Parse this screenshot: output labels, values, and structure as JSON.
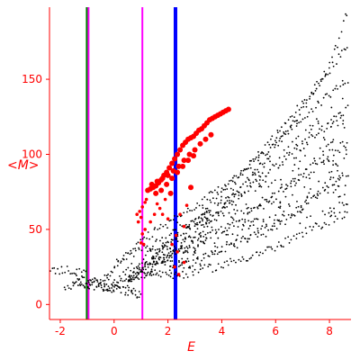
{
  "chart_data": {
    "type": "scatter",
    "title": "",
    "xlabel": "E",
    "ylabel": "<M>",
    "xlim": [
      -2.4,
      8.8
    ],
    "ylim": [
      -10,
      198
    ],
    "x_ticks": [
      -2,
      0,
      2,
      4,
      6,
      8
    ],
    "y_ticks": [
      0,
      50,
      100,
      150
    ],
    "grid": false,
    "axis_color": "#ff0000",
    "vertical_lines": [
      {
        "x": -1.0,
        "color": "#008000"
      },
      {
        "x": -0.95,
        "color": "#ff00ff"
      },
      {
        "x": 1.05,
        "color": "#ff00ff"
      },
      {
        "x": 2.28,
        "color": "#0000ff"
      }
    ],
    "series": [
      {
        "color": "#000000",
        "bands": [
          {
            "points": [
              [
                -1.6,
                15
              ],
              [
                -1.0,
                13
              ],
              [
                -0.5,
                11
              ],
              [
                0.0,
                12
              ],
              [
                0.5,
                15
              ],
              [
                1.0,
                20
              ],
              [
                2.0,
                32
              ],
              [
                3.0,
                46
              ],
              [
                4.0,
                62
              ],
              [
                5.0,
                82
              ],
              [
                6.0,
                106
              ],
              [
                7.0,
                130
              ],
              [
                8.0,
                158
              ],
              [
                8.7,
                196
              ]
            ]
          },
          {
            "points": [
              [
                -1.4,
                17
              ],
              [
                -0.5,
                14
              ],
              [
                0.0,
                16
              ],
              [
                0.5,
                22
              ],
              [
                1.0,
                30
              ],
              [
                2.0,
                44
              ],
              [
                3.0,
                58
              ],
              [
                4.0,
                74
              ],
              [
                5.0,
                92
              ],
              [
                6.0,
                112
              ],
              [
                7.0,
                134
              ],
              [
                8.0,
                156
              ],
              [
                8.7,
                172
              ]
            ]
          },
          {
            "points": [
              [
                -0.4,
                18
              ],
              [
                0.0,
                24
              ],
              [
                0.5,
                32
              ],
              [
                1.0,
                42
              ],
              [
                2.0,
                54
              ],
              [
                3.0,
                64
              ],
              [
                4.0,
                78
              ],
              [
                5.0,
                92
              ],
              [
                6.0,
                108
              ],
              [
                7.0,
                124
              ],
              [
                8.0,
                140
              ],
              [
                8.7,
                150
              ]
            ]
          },
          {
            "points": [
              [
                0.0,
                28
              ],
              [
                1.0,
                36
              ],
              [
                2.0,
                44
              ],
              [
                3.0,
                54
              ],
              [
                4.0,
                66
              ],
              [
                5.0,
                78
              ],
              [
                6.0,
                92
              ],
              [
                7.0,
                106
              ],
              [
                8.0,
                120
              ],
              [
                8.7,
                132
              ]
            ]
          },
          {
            "points": [
              [
                1.0,
                25
              ],
              [
                2.0,
                32
              ],
              [
                3.0,
                40
              ],
              [
                4.0,
                50
              ],
              [
                5.0,
                60
              ],
              [
                6.0,
                72
              ],
              [
                7.0,
                86
              ],
              [
                8.0,
                100
              ],
              [
                8.7,
                108
              ]
            ]
          },
          {
            "points": [
              [
                1.5,
                20
              ],
              [
                3.0,
                28
              ],
              [
                4.0,
                36
              ],
              [
                5.0,
                44
              ],
              [
                6.0,
                54
              ],
              [
                7.0,
                66
              ],
              [
                8.0,
                80
              ],
              [
                8.7,
                88
              ]
            ]
          },
          {
            "points": [
              [
                2.0,
                18
              ],
              [
                4.0,
                26
              ],
              [
                6.0,
                38
              ],
              [
                8.0,
                56
              ],
              [
                8.7,
                62
              ]
            ]
          },
          {
            "points": [
              [
                -2.4,
                21
              ],
              [
                -2.0,
                23
              ],
              [
                -1.6,
                23
              ],
              [
                -1.2,
                21
              ],
              [
                -0.8,
                17
              ],
              [
                -0.4,
                13
              ],
              [
                0.0,
                11
              ],
              [
                0.5,
                9
              ],
              [
                1.0,
                7
              ]
            ]
          },
          {
            "points": [
              [
                -1.9,
                12
              ],
              [
                -1.4,
                14
              ],
              [
                -0.9,
                14
              ],
              [
                -0.4,
                12
              ],
              [
                0.0,
                10
              ],
              [
                0.6,
                8
              ],
              [
                1.0,
                6
              ]
            ]
          }
        ]
      },
      {
        "color": "#ff0000",
        "points": [
          [
            1.25,
            76
          ],
          [
            1.35,
            77
          ],
          [
            1.45,
            78
          ],
          [
            1.55,
            79
          ],
          [
            1.65,
            81
          ],
          [
            1.75,
            83
          ],
          [
            1.85,
            86
          ],
          [
            1.95,
            88
          ],
          [
            2.05,
            91
          ],
          [
            2.15,
            94
          ],
          [
            2.25,
            97
          ],
          [
            2.35,
            100
          ],
          [
            2.45,
            103
          ],
          [
            2.55,
            106
          ],
          [
            2.65,
            108
          ],
          [
            2.75,
            110
          ],
          [
            2.85,
            111
          ],
          [
            2.95,
            112
          ],
          [
            3.05,
            114
          ],
          [
            3.15,
            116
          ],
          [
            3.25,
            117
          ],
          [
            3.35,
            119
          ],
          [
            3.45,
            121
          ],
          [
            3.55,
            123
          ],
          [
            3.65,
            124
          ],
          [
            3.75,
            125
          ],
          [
            3.85,
            126
          ],
          [
            3.95,
            127
          ],
          [
            4.05,
            128
          ],
          [
            4.15,
            129
          ],
          [
            4.25,
            130
          ],
          [
            1.4,
            80
          ],
          [
            1.6,
            82
          ],
          [
            1.8,
            84
          ],
          [
            2.0,
            86
          ],
          [
            2.2,
            89
          ],
          [
            2.4,
            92
          ],
          [
            2.6,
            96
          ],
          [
            2.8,
            100
          ],
          [
            3.0,
            103
          ],
          [
            1.55,
            74
          ],
          [
            1.75,
            76
          ],
          [
            1.95,
            80
          ],
          [
            2.15,
            84
          ],
          [
            2.35,
            88
          ],
          [
            2.55,
            92
          ],
          [
            2.75,
            96
          ],
          [
            2.95,
            99
          ],
          [
            0.85,
            60
          ],
          [
            0.95,
            62
          ],
          [
            1.05,
            65
          ],
          [
            1.15,
            68
          ],
          [
            0.9,
            55
          ],
          [
            1.0,
            58
          ],
          [
            1.2,
            70
          ],
          [
            1.1,
            40
          ],
          [
            1.15,
            50
          ],
          [
            2.3,
            46
          ],
          [
            2.25,
            25
          ],
          [
            2.35,
            35
          ],
          [
            2.45,
            60
          ],
          [
            2.6,
            52
          ],
          [
            2.7,
            66
          ],
          [
            2.15,
            40
          ],
          [
            1.0,
            41
          ],
          [
            1.05,
            47
          ],
          [
            1.7,
            64
          ],
          [
            1.9,
            70
          ],
          [
            2.1,
            74
          ],
          [
            2.0,
            57
          ],
          [
            1.8,
            60
          ],
          [
            1.6,
            67
          ],
          [
            3.2,
            107
          ],
          [
            3.4,
            110
          ],
          [
            3.6,
            113
          ],
          [
            1.35,
            55
          ],
          [
            1.5,
            60
          ],
          [
            2.4,
            20
          ],
          [
            2.6,
            28
          ],
          [
            2.85,
            78
          ]
        ]
      }
    ]
  }
}
